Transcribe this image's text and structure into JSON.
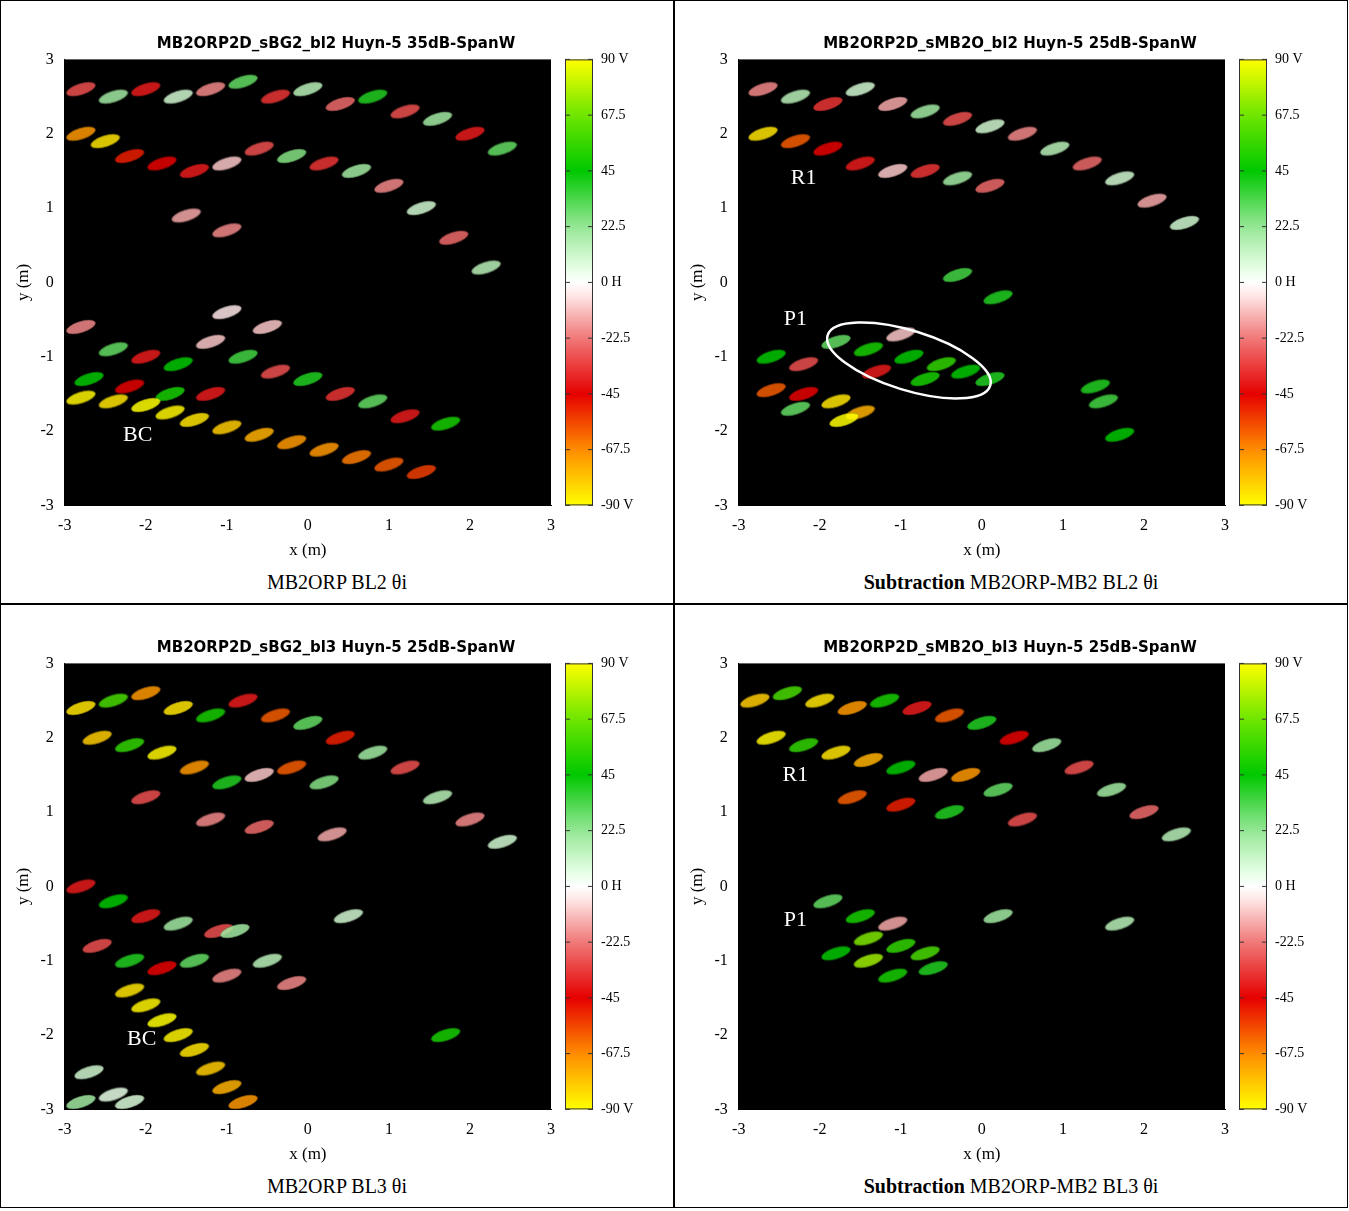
{
  "chart_data": [
    {
      "type": "scatter",
      "title": "MB2ORP2D_sBG2_bl2 Huyn-5 35dB-SpanW",
      "caption": "MB2ORP BL2 θi",
      "xlabel": "x (m)",
      "ylabel": "y (m)",
      "xlim": [
        -3,
        3
      ],
      "ylim": [
        -3,
        3
      ],
      "xticks": [
        -3,
        -2,
        -1,
        0,
        1,
        2,
        3
      ],
      "yticks": [
        -3,
        -2,
        -1,
        0,
        1,
        2,
        3
      ],
      "grid": false,
      "marker": "ellipse",
      "colorbar": {
        "range": [
          -90,
          90
        ],
        "ticks": [
          {
            "value": -90,
            "label": "-90 V"
          },
          -67.5,
          -45,
          -22.5,
          {
            "value": 0,
            "label": "0 H"
          },
          22.5,
          45,
          67.5,
          {
            "value": 90,
            "label": "90 V"
          }
        ]
      },
      "annotations": [
        {
          "text": "BC",
          "x": -2.1,
          "y": -2.05
        }
      ],
      "cells": [
        [
          -2.8,
          2.6,
          -30
        ],
        [
          -2.4,
          2.5,
          20
        ],
        [
          -2.0,
          2.6,
          -40
        ],
        [
          -1.6,
          2.5,
          10
        ],
        [
          -1.2,
          2.6,
          -20
        ],
        [
          -0.8,
          2.7,
          30
        ],
        [
          -0.4,
          2.5,
          -35
        ],
        [
          0,
          2.6,
          15
        ],
        [
          0.4,
          2.4,
          -25
        ],
        [
          0.8,
          2.5,
          40
        ],
        [
          1.2,
          2.3,
          -30
        ],
        [
          1.6,
          2.2,
          20
        ],
        [
          2.0,
          2.0,
          -40
        ],
        [
          2.4,
          1.8,
          30
        ],
        [
          -2.8,
          2.0,
          -70
        ],
        [
          -2.5,
          1.9,
          -85
        ],
        [
          -2.2,
          1.7,
          -50
        ],
        [
          -1.8,
          1.6,
          -45
        ],
        [
          -1.4,
          1.5,
          -40
        ],
        [
          -1.0,
          1.6,
          -10
        ],
        [
          -0.6,
          1.8,
          -30
        ],
        [
          -0.2,
          1.7,
          25
        ],
        [
          0.2,
          1.6,
          -35
        ],
        [
          0.6,
          1.5,
          20
        ],
        [
          1.0,
          1.3,
          -20
        ],
        [
          1.4,
          1.0,
          10
        ],
        [
          1.8,
          0.6,
          -25
        ],
        [
          2.2,
          0.2,
          15
        ],
        [
          -1.5,
          0.9,
          -15
        ],
        [
          -1.0,
          0.7,
          -20
        ],
        [
          -0.5,
          -0.6,
          -10
        ],
        [
          -1.0,
          -0.4,
          -5
        ],
        [
          -2.8,
          -0.6,
          -20
        ],
        [
          -2.4,
          -0.9,
          30
        ],
        [
          -2.0,
          -1.0,
          -40
        ],
        [
          -1.6,
          -1.1,
          45
        ],
        [
          -1.2,
          -0.8,
          -10
        ],
        [
          -0.8,
          -1.0,
          35
        ],
        [
          -0.4,
          -1.2,
          -30
        ],
        [
          0.0,
          -1.3,
          40
        ],
        [
          0.4,
          -1.5,
          -35
        ],
        [
          0.8,
          -1.6,
          30
        ],
        [
          1.2,
          -1.8,
          -40
        ],
        [
          1.7,
          -1.9,
          50
        ],
        [
          -2.7,
          -1.3,
          45
        ],
        [
          -2.2,
          -1.4,
          -45
        ],
        [
          -1.7,
          -1.5,
          50
        ],
        [
          -1.2,
          -1.5,
          -40
        ],
        [
          -2.8,
          -1.55,
          -88
        ],
        [
          -2.4,
          -1.6,
          -85
        ],
        [
          -2.0,
          -1.65,
          -90
        ],
        [
          -1.7,
          -1.75,
          -88
        ],
        [
          -1.4,
          -1.85,
          -85
        ],
        [
          -1.0,
          -1.95,
          -80
        ],
        [
          -0.6,
          -2.05,
          -75
        ],
        [
          -0.2,
          -2.15,
          -70
        ],
        [
          0.2,
          -2.25,
          -70
        ],
        [
          0.6,
          -2.35,
          -65
        ],
        [
          1.0,
          -2.45,
          -60
        ],
        [
          1.4,
          -2.55,
          -55
        ]
      ]
    },
    {
      "type": "scatter",
      "title": "MB2ORP2D_sMB2O_bl2 Huyn-5 25dB-SpanW",
      "caption_bold": "Subtraction",
      "caption": "MB2ORP-MB2 BL2 θi",
      "xlabel": "x (m)",
      "ylabel": "y (m)",
      "xlim": [
        -3,
        3
      ],
      "ylim": [
        -3,
        3
      ],
      "xticks": [
        -3,
        -2,
        -1,
        0,
        1,
        2,
        3
      ],
      "yticks": [
        -3,
        -2,
        -1,
        0,
        1,
        2,
        3
      ],
      "grid": false,
      "marker": "ellipse",
      "colorbar": {
        "range": [
          -90,
          90
        ],
        "ticks": [
          {
            "value": -90,
            "label": "-90 V"
          },
          -67.5,
          -45,
          -22.5,
          {
            "value": 0,
            "label": "0 H"
          },
          22.5,
          45,
          67.5,
          {
            "value": 90,
            "label": "90 V"
          }
        ]
      },
      "annotations": [
        {
          "text": "R1",
          "x": -2.2,
          "y": 1.4
        },
        {
          "text": "P1",
          "x": -2.3,
          "y": -0.5
        }
      ],
      "highlight": {
        "x": -0.9,
        "y": -1.05,
        "rx": 1.05,
        "ry": 0.4
      },
      "cells": [
        [
          -2.7,
          2.6,
          -20
        ],
        [
          -2.3,
          2.5,
          15
        ],
        [
          -1.9,
          2.4,
          -35
        ],
        [
          -1.5,
          2.6,
          10
        ],
        [
          -1.1,
          2.4,
          -15
        ],
        [
          -0.7,
          2.3,
          20
        ],
        [
          -0.3,
          2.2,
          -30
        ],
        [
          0.1,
          2.1,
          10
        ],
        [
          0.5,
          2.0,
          -20
        ],
        [
          0.9,
          1.8,
          15
        ],
        [
          1.3,
          1.6,
          -25
        ],
        [
          1.7,
          1.4,
          10
        ],
        [
          2.1,
          1.1,
          -15
        ],
        [
          2.5,
          0.8,
          10
        ],
        [
          -2.7,
          2.0,
          -85
        ],
        [
          -2.3,
          1.9,
          -60
        ],
        [
          -1.9,
          1.8,
          -45
        ],
        [
          -1.5,
          1.6,
          -40
        ],
        [
          -1.1,
          1.5,
          -10
        ],
        [
          -0.7,
          1.5,
          -35
        ],
        [
          -0.3,
          1.4,
          20
        ],
        [
          0.1,
          1.3,
          -25
        ],
        [
          -1.8,
          -0.8,
          30
        ],
        [
          -1.4,
          -0.9,
          50
        ],
        [
          -1.0,
          -0.7,
          -10
        ],
        [
          -0.9,
          -1.0,
          45
        ],
        [
          -0.5,
          -1.1,
          55
        ],
        [
          -0.2,
          -1.2,
          45
        ],
        [
          0.1,
          -1.3,
          40
        ],
        [
          -1.3,
          -1.2,
          -40
        ],
        [
          -0.7,
          -1.3,
          50
        ],
        [
          -2.6,
          -1.0,
          45
        ],
        [
          -2.2,
          -1.1,
          -30
        ],
        [
          -2.6,
          -1.45,
          -60
        ],
        [
          -2.2,
          -1.5,
          -45
        ],
        [
          -1.8,
          -1.6,
          -85
        ],
        [
          -1.5,
          -1.75,
          -75
        ],
        [
          -1.7,
          -1.85,
          -90
        ],
        [
          -2.3,
          -1.7,
          30
        ],
        [
          0.2,
          -0.2,
          40
        ],
        [
          -0.3,
          0.1,
          35
        ],
        [
          1.7,
          -2.05,
          45
        ],
        [
          1.4,
          -1.4,
          40
        ],
        [
          1.5,
          -1.6,
          35
        ]
      ]
    },
    {
      "type": "scatter",
      "title": "MB2ORP2D_sBG2_bl3 Huyn-5 25dB-SpanW",
      "caption": "MB2ORP BL3 θi",
      "xlabel": "x (m)",
      "ylabel": "y (m)",
      "xlim": [
        -3,
        3
      ],
      "ylim": [
        -3,
        3
      ],
      "xticks": [
        -3,
        -2,
        -1,
        0,
        1,
        2,
        3
      ],
      "yticks": [
        -3,
        -2,
        -1,
        0,
        1,
        2,
        3
      ],
      "grid": false,
      "marker": "ellipse",
      "colorbar": {
        "range": [
          -90,
          90
        ],
        "ticks": [
          {
            "value": -90,
            "label": "-90 V"
          },
          -67.5,
          -45,
          -22.5,
          {
            "value": 0,
            "label": "0 H"
          },
          22.5,
          45,
          67.5,
          {
            "value": 90,
            "label": "90 V"
          }
        ]
      },
      "annotations": [
        {
          "text": "BC",
          "x": -2.05,
          "y": -2.05
        }
      ],
      "cells": [
        [
          -2.8,
          2.4,
          -85
        ],
        [
          -2.4,
          2.5,
          60
        ],
        [
          -2.0,
          2.6,
          -70
        ],
        [
          -1.6,
          2.4,
          -85
        ],
        [
          -1.2,
          2.3,
          50
        ],
        [
          -0.8,
          2.5,
          -40
        ],
        [
          -0.4,
          2.3,
          -60
        ],
        [
          0,
          2.2,
          30
        ],
        [
          0.4,
          2.0,
          -50
        ],
        [
          0.8,
          1.8,
          20
        ],
        [
          1.2,
          1.6,
          -30
        ],
        [
          1.6,
          1.2,
          15
        ],
        [
          2.0,
          0.9,
          -20
        ],
        [
          2.4,
          0.6,
          10
        ],
        [
          -2.6,
          2.0,
          -80
        ],
        [
          -2.2,
          1.9,
          55
        ],
        [
          -1.8,
          1.8,
          -88
        ],
        [
          -1.4,
          1.6,
          -70
        ],
        [
          -1.0,
          1.4,
          40
        ],
        [
          -0.6,
          1.5,
          -10
        ],
        [
          -0.2,
          1.6,
          -60
        ],
        [
          0.2,
          1.4,
          25
        ],
        [
          -2.0,
          1.2,
          -30
        ],
        [
          -1.2,
          0.9,
          -20
        ],
        [
          -0.6,
          0.8,
          -25
        ],
        [
          0.3,
          0.7,
          -15
        ],
        [
          -2.8,
          0.0,
          -40
        ],
        [
          -2.4,
          -0.2,
          45
        ],
        [
          -2.0,
          -0.4,
          -40
        ],
        [
          -1.6,
          -0.5,
          20
        ],
        [
          -1.1,
          -0.6,
          -30
        ],
        [
          -0.9,
          -0.6,
          20
        ],
        [
          -2.6,
          -0.8,
          -30
        ],
        [
          -2.2,
          -1.0,
          40
        ],
        [
          -1.8,
          -1.1,
          -45
        ],
        [
          -1.4,
          -1.0,
          30
        ],
        [
          -1.0,
          -1.2,
          -20
        ],
        [
          -0.5,
          -1.0,
          15
        ],
        [
          -0.2,
          -1.3,
          -20
        ],
        [
          0.5,
          -0.4,
          10
        ],
        [
          1.7,
          -2.0,
          50
        ],
        [
          -2.2,
          -1.4,
          -85
        ],
        [
          -2.0,
          -1.6,
          -88
        ],
        [
          -1.8,
          -1.8,
          -90
        ],
        [
          -1.6,
          -2.0,
          -88
        ],
        [
          -1.4,
          -2.2,
          -85
        ],
        [
          -1.2,
          -2.45,
          -80
        ],
        [
          -1.0,
          -2.7,
          -75
        ],
        [
          -0.8,
          -2.9,
          -70
        ],
        [
          -2.7,
          -2.5,
          10
        ],
        [
          -2.4,
          -2.8,
          5
        ],
        [
          -2.8,
          -2.9,
          20
        ],
        [
          -2.2,
          -2.9,
          8
        ]
      ]
    },
    {
      "type": "scatter",
      "title": "MB2ORP2D_sMB2O_bl3 Huyn-5 25dB-SpanW",
      "caption_bold": "Subtraction",
      "caption": "MB2ORP-MB2 BL3 θi",
      "xlabel": "x (m)",
      "ylabel": "y (m)",
      "xlim": [
        -3,
        3
      ],
      "ylim": [
        -3,
        3
      ],
      "xticks": [
        -3,
        -2,
        -1,
        0,
        1,
        2,
        3
      ],
      "yticks": [
        -3,
        -2,
        -1,
        0,
        1,
        2,
        3
      ],
      "grid": false,
      "marker": "ellipse",
      "colorbar": {
        "range": [
          -90,
          90
        ],
        "ticks": [
          {
            "value": -90,
            "label": "-90 V"
          },
          -67.5,
          -45,
          -22.5,
          {
            "value": 0,
            "label": "0 H"
          },
          22.5,
          45,
          67.5,
          {
            "value": 90,
            "label": "90 V"
          }
        ]
      },
      "annotations": [
        {
          "text": "R1",
          "x": -2.3,
          "y": 1.5
        },
        {
          "text": "P1",
          "x": -2.3,
          "y": -0.45
        }
      ],
      "cells": [
        [
          -2.8,
          2.5,
          -80
        ],
        [
          -2.4,
          2.6,
          60
        ],
        [
          -2.0,
          2.5,
          -85
        ],
        [
          -1.6,
          2.4,
          -70
        ],
        [
          -1.2,
          2.5,
          50
        ],
        [
          -0.8,
          2.4,
          -40
        ],
        [
          -0.4,
          2.3,
          -60
        ],
        [
          0,
          2.2,
          40
        ],
        [
          0.4,
          2.0,
          -45
        ],
        [
          0.8,
          1.9,
          20
        ],
        [
          1.2,
          1.6,
          -30
        ],
        [
          1.6,
          1.3,
          20
        ],
        [
          2.0,
          1.0,
          -25
        ],
        [
          2.4,
          0.7,
          15
        ],
        [
          -2.6,
          2.0,
          -88
        ],
        [
          -2.2,
          1.9,
          55
        ],
        [
          -1.8,
          1.8,
          -85
        ],
        [
          -1.4,
          1.7,
          -75
        ],
        [
          -1.0,
          1.6,
          45
        ],
        [
          -0.6,
          1.5,
          -15
        ],
        [
          -0.2,
          1.5,
          -70
        ],
        [
          0.2,
          1.3,
          30
        ],
        [
          -1.6,
          1.2,
          -60
        ],
        [
          -1.0,
          1.1,
          -50
        ],
        [
          -0.4,
          1.0,
          40
        ],
        [
          0.5,
          0.9,
          -30
        ],
        [
          -1.9,
          -0.2,
          30
        ],
        [
          -1.5,
          -0.4,
          50
        ],
        [
          -1.1,
          -0.5,
          -15
        ],
        [
          -1.4,
          -0.7,
          70
        ],
        [
          -1.0,
          -0.8,
          55
        ],
        [
          -0.7,
          -0.9,
          60
        ],
        [
          -1.8,
          -0.9,
          45
        ],
        [
          -1.4,
          -1.0,
          75
        ],
        [
          -1.1,
          -1.2,
          50
        ],
        [
          -0.6,
          -1.1,
          40
        ],
        [
          0.2,
          -0.4,
          20
        ],
        [
          1.7,
          -0.5,
          15
        ]
      ]
    }
  ]
}
